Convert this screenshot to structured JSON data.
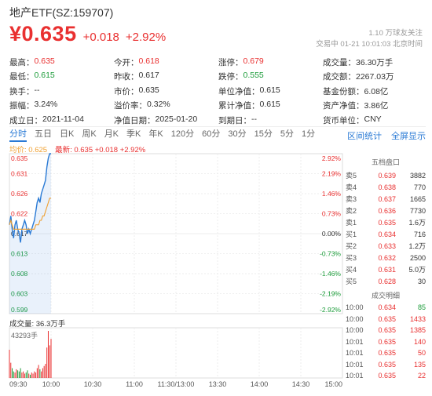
{
  "header": {
    "title": "地产ETF(SZ:159707)",
    "price": "¥0.635",
    "change": "+0.018",
    "change_pct": "+2.92%",
    "subscribers": "1.10 万球友关注",
    "trade_status": "交易中  01-21 10:01:03 北京时间"
  },
  "stats": [
    [
      {
        "label": "最高：",
        "value": "0.635",
        "color": "red"
      },
      {
        "label": "今开：",
        "value": "0.618",
        "color": "red"
      },
      {
        "label": "涨停：",
        "value": "0.679",
        "color": "red"
      },
      {
        "label": "成交量：",
        "value": "36.30万手",
        "color": ""
      }
    ],
    [
      {
        "label": "最低：",
        "value": "0.615",
        "color": "green"
      },
      {
        "label": "昨收：",
        "value": "0.617",
        "color": ""
      },
      {
        "label": "跌停：",
        "value": "0.555",
        "color": "green"
      },
      {
        "label": "成交额：",
        "value": "2267.03万",
        "color": ""
      }
    ],
    [
      {
        "label": "换手：",
        "value": "--",
        "color": ""
      },
      {
        "label": "市价：",
        "value": "0.635",
        "color": ""
      },
      {
        "label": "单位净值：",
        "value": "0.615",
        "color": ""
      },
      {
        "label": "基金份额：",
        "value": "6.08亿",
        "color": ""
      }
    ],
    [
      {
        "label": "振幅：",
        "value": "3.24%",
        "color": ""
      },
      {
        "label": "溢价率：",
        "value": "0.32%",
        "color": ""
      },
      {
        "label": "累计净值：",
        "value": "0.615",
        "color": ""
      },
      {
        "label": "资产净值：",
        "value": "3.86亿",
        "color": ""
      }
    ],
    [
      {
        "label": "成立日：",
        "value": "2021-11-04",
        "color": ""
      },
      {
        "label": "净值日期：",
        "value": "2025-01-20",
        "color": ""
      },
      {
        "label": "到期日：",
        "value": "--",
        "color": ""
      },
      {
        "label": "货币单位：",
        "value": "CNY",
        "color": ""
      }
    ]
  ],
  "periods": [
    "分时",
    "五日",
    "日K",
    "周K",
    "月K",
    "季K",
    "年K",
    "120分",
    "60分",
    "30分",
    "15分",
    "5分",
    "1分"
  ],
  "active_period": "分时",
  "period_actions": [
    "区间统计",
    "全屏显示"
  ],
  "legend": {
    "avg": "均价: 0.625",
    "latest": "最新: 0.635 +0.018 +2.92%"
  },
  "chart_data": {
    "type": "line",
    "price_ticks": [
      "0.635",
      "0.631",
      "0.626",
      "0.622",
      "0.617",
      "0.613",
      "0.608",
      "0.603",
      "0.599"
    ],
    "pct_ticks": [
      "2.92%",
      "2.19%",
      "1.46%",
      "0.73%",
      "0.00%",
      "-0.73%",
      "-1.46%",
      "-2.19%",
      "-2.92%"
    ],
    "x_ticks": [
      "09:30",
      "10:00",
      "10:30",
      "11:00",
      "11:30/13:00",
      "13:30",
      "14:00",
      "14:30",
      "15:00"
    ],
    "ylim": [
      0.599,
      0.635
    ],
    "prev_close": 0.617,
    "minutes_total": 240,
    "price_series": [
      0.619,
      0.621,
      0.618,
      0.616,
      0.619,
      0.62,
      0.618,
      0.617,
      0.615,
      0.618,
      0.619,
      0.62,
      0.619,
      0.617,
      0.618,
      0.617,
      0.618,
      0.619,
      0.62,
      0.622,
      0.624,
      0.625,
      0.624,
      0.626,
      0.627,
      0.628,
      0.629,
      0.632,
      0.634,
      0.635,
      0.635
    ],
    "avg_series": [
      0.619,
      0.62,
      0.619,
      0.618,
      0.618,
      0.618,
      0.618,
      0.618,
      0.618,
      0.618,
      0.618,
      0.618,
      0.618,
      0.618,
      0.618,
      0.618,
      0.618,
      0.618,
      0.618,
      0.619,
      0.619,
      0.619,
      0.62,
      0.62,
      0.621,
      0.621,
      0.622,
      0.623,
      0.624,
      0.625,
      0.625
    ],
    "volume_label": "成交量: 36.3万手",
    "volume_max_label": "43293手",
    "volume_max": 43293,
    "volume_series": [
      26000,
      14000,
      9000,
      6000,
      5000,
      8000,
      7000,
      6000,
      9000,
      5000,
      6000,
      4000,
      5000,
      7000,
      4000,
      3000,
      5000,
      4000,
      6000,
      5000,
      9000,
      12000,
      8000,
      6000,
      9000,
      11000,
      13000,
      28000,
      43293,
      30000,
      36000
    ]
  },
  "order_book": {
    "title": "五档盘口",
    "rows": [
      {
        "label": "卖5",
        "price": "0.639",
        "vol": "3882"
      },
      {
        "label": "卖4",
        "price": "0.638",
        "vol": "770"
      },
      {
        "label": "卖3",
        "price": "0.637",
        "vol": "1665"
      },
      {
        "label": "卖2",
        "price": "0.636",
        "vol": "7730"
      },
      {
        "label": "卖1",
        "price": "0.635",
        "vol": "1.6万"
      },
      {
        "label": "买1",
        "price": "0.634",
        "vol": "716"
      },
      {
        "label": "买2",
        "price": "0.633",
        "vol": "1.2万"
      },
      {
        "label": "买3",
        "price": "0.632",
        "vol": "2500"
      },
      {
        "label": "买4",
        "price": "0.631",
        "vol": "5.0万"
      },
      {
        "label": "买5",
        "price": "0.628",
        "vol": "30"
      }
    ]
  },
  "trades": {
    "title": "成交明细",
    "rows": [
      {
        "time": "10:00",
        "price": "0.634",
        "vol": "85",
        "color": "green"
      },
      {
        "time": "10:00",
        "price": "0.635",
        "vol": "1433",
        "color": "red"
      },
      {
        "time": "10:00",
        "price": "0.635",
        "vol": "1385",
        "color": "red"
      },
      {
        "time": "10:01",
        "price": "0.635",
        "vol": "140",
        "color": "red"
      },
      {
        "time": "10:01",
        "price": "0.635",
        "vol": "50",
        "color": "red"
      },
      {
        "time": "10:01",
        "price": "0.635",
        "vol": "135",
        "color": "red"
      },
      {
        "time": "10:01",
        "price": "0.635",
        "vol": "22",
        "color": "red"
      }
    ]
  },
  "colors": {
    "up": "#e93030",
    "down": "#1c9c3a",
    "line": "#2a7ad5",
    "avg": "#f0a030",
    "accent": "#2a7ad5"
  }
}
